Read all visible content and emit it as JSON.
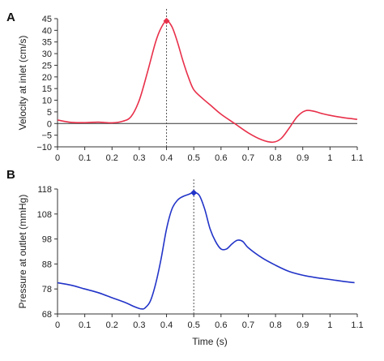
{
  "chart_data": [
    {
      "type": "line",
      "panel": "A",
      "ylabel": "Velocity at inlet (cm/s)",
      "xlabel": "",
      "xlim": [
        0,
        1.1
      ],
      "ylim": [
        -10,
        45
      ],
      "xticks": [
        "0",
        "0.1",
        "0.2",
        "0.3",
        "0.4",
        "0.5",
        "0.6",
        "0.7",
        "0.8",
        "0.9",
        "1",
        "1.1"
      ],
      "yticks": [
        "45",
        "40",
        "35",
        "30",
        "25",
        "20",
        "15",
        "10",
        "5",
        "0",
        "−5",
        "−10"
      ],
      "color": "#e8304a",
      "peak": {
        "x": 0.4,
        "y": 44
      },
      "x": [
        0,
        0.05,
        0.1,
        0.15,
        0.2,
        0.24,
        0.27,
        0.3,
        0.33,
        0.36,
        0.38,
        0.4,
        0.42,
        0.44,
        0.46,
        0.48,
        0.5,
        0.53,
        0.56,
        0.6,
        0.65,
        0.7,
        0.75,
        0.79,
        0.82,
        0.85,
        0.88,
        0.91,
        0.94,
        0.97,
        1.0,
        1.05,
        1.1
      ],
      "y": [
        1.5,
        0.5,
        0.4,
        0.6,
        0.3,
        1,
        3,
        10,
        22,
        35,
        41,
        44,
        41.5,
        35,
        27,
        20,
        14.5,
        11,
        8,
        4,
        0,
        -4,
        -7,
        -8,
        -6.5,
        -2,
        3,
        5.5,
        5.3,
        4.3,
        3.5,
        2.5,
        1.8
      ]
    },
    {
      "type": "line",
      "panel": "B",
      "ylabel": "Pressure at outlet (mmHg)",
      "xlabel": "Time (s)",
      "xlim": [
        0,
        1.1
      ],
      "ylim": [
        68,
        118
      ],
      "xticks": [
        "0",
        "0.1",
        "0.2",
        "0.3",
        "0.4",
        "0.5",
        "0.6",
        "0.7",
        "0.8",
        "0.9",
        "1",
        "1.1"
      ],
      "yticks": [
        "118",
        "108",
        "98",
        "88",
        "78",
        "68"
      ],
      "color": "#2234c8",
      "peak": {
        "x": 0.5,
        "y": 116.5
      },
      "x": [
        0,
        0.05,
        0.1,
        0.15,
        0.2,
        0.25,
        0.28,
        0.3,
        0.31,
        0.32,
        0.34,
        0.36,
        0.38,
        0.4,
        0.42,
        0.44,
        0.46,
        0.48,
        0.5,
        0.52,
        0.54,
        0.56,
        0.58,
        0.6,
        0.62,
        0.64,
        0.66,
        0.68,
        0.7,
        0.75,
        0.8,
        0.85,
        0.9,
        0.95,
        1.0,
        1.05,
        1.09
      ],
      "y": [
        80.5,
        79.5,
        78,
        76.5,
        74.5,
        72.5,
        71,
        70.2,
        70,
        70.3,
        73,
        80,
        90,
        102,
        110,
        113.5,
        115,
        115.8,
        116.5,
        115.5,
        110,
        102,
        97,
        94,
        94,
        96,
        97.5,
        97,
        94.5,
        90.5,
        87.5,
        85,
        83.5,
        82.5,
        81.8,
        81,
        80.5
      ]
    }
  ]
}
